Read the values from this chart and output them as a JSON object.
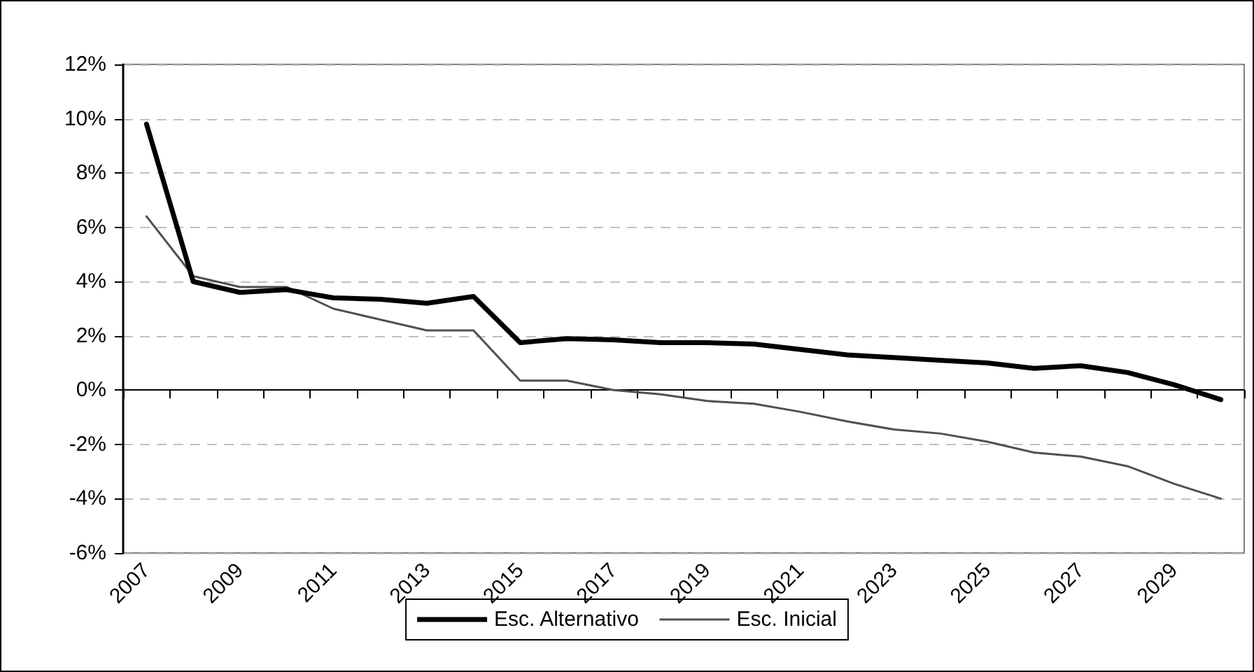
{
  "chart_data": {
    "type": "line",
    "categories": [
      "2007",
      null,
      "2009",
      null,
      "2011",
      null,
      "2013",
      null,
      "2015",
      null,
      "2017",
      null,
      "2019",
      null,
      "2021",
      null,
      "2023",
      null,
      "2025",
      null,
      "2027",
      null,
      "2029",
      null
    ],
    "series": [
      {
        "name": "Esc. Alternativo",
        "color": "#000000",
        "values": [
          9.8,
          4.0,
          3.6,
          3.7,
          3.4,
          3.35,
          3.2,
          3.45,
          1.75,
          1.9,
          1.85,
          1.75,
          1.75,
          1.7,
          1.5,
          1.3,
          1.2,
          1.1,
          1.0,
          0.8,
          0.9,
          0.65,
          0.2,
          -0.35
        ]
      },
      {
        "name": "Esc. Inicial",
        "color": "#505050",
        "values": [
          6.4,
          4.2,
          3.8,
          3.8,
          3.0,
          2.6,
          2.2,
          2.2,
          0.35,
          0.35,
          0.0,
          -0.15,
          -0.4,
          -0.5,
          -0.8,
          -1.15,
          -1.45,
          -1.6,
          -1.9,
          -2.3,
          -2.45,
          -2.8,
          -3.45,
          -4.0
        ]
      }
    ],
    "ylim": [
      -6,
      12
    ],
    "yticks": [
      {
        "value": -6,
        "label": "-6%"
      },
      {
        "value": -4,
        "label": "-4%"
      },
      {
        "value": -2,
        "label": "-2%"
      },
      {
        "value": 0,
        "label": "0%"
      },
      {
        "value": 2,
        "label": "2%"
      },
      {
        "value": 4,
        "label": "4%"
      },
      {
        "value": 6,
        "label": "6%"
      },
      {
        "value": 8,
        "label": "8%"
      },
      {
        "value": 10,
        "label": "10%"
      },
      {
        "value": 12,
        "label": "12%"
      }
    ],
    "grid": "y",
    "legend": "bottom",
    "marker": "none",
    "line_style": "solid"
  }
}
